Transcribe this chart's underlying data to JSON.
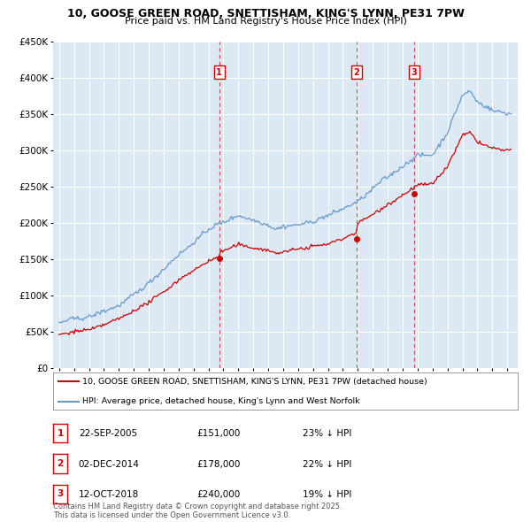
{
  "title_line1": "10, GOOSE GREEN ROAD, SNETTISHAM, KING'S LYNN, PE31 7PW",
  "title_line2": "Price paid vs. HM Land Registry's House Price Index (HPI)",
  "background_color": "#dce9f5",
  "legend_label_red": "10, GOOSE GREEN ROAD, SNETTISHAM, KING'S LYNN, PE31 7PW (detached house)",
  "legend_label_blue": "HPI: Average price, detached house, King's Lynn and West Norfolk",
  "sale_labels": [
    "1",
    "2",
    "3"
  ],
  "sale_hpi_pct": [
    "23% ↓ HPI",
    "22% ↓ HPI",
    "19% ↓ HPI"
  ],
  "sale_date_labels": [
    "22-SEP-2005",
    "02-DEC-2014",
    "12-OCT-2018"
  ],
  "sale_price_labels": [
    "£151,000",
    "£178,000",
    "£240,000"
  ],
  "footnote": "Contains HM Land Registry data © Crown copyright and database right 2025.\nThis data is licensed under the Open Government Licence v3.0.",
  "red_color": "#cc0000",
  "blue_color": "#6699cc",
  "ylim_max": 450000,
  "ylim_min": 0,
  "sale_times": [
    2005.72,
    2014.92,
    2018.78
  ],
  "sale_prices": [
    151000,
    178000,
    240000
  ]
}
